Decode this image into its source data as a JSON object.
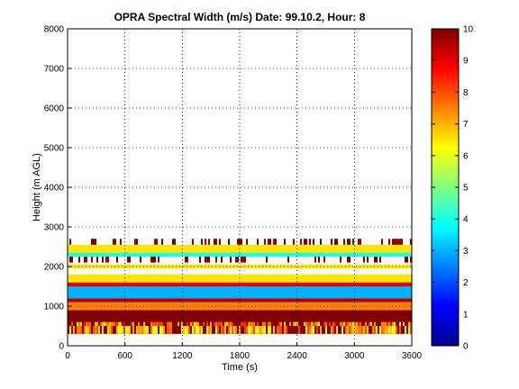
{
  "chart_data": {
    "type": "heatmap",
    "title": "OPRA Spectral Width (m/s)  Date: 99.10.2, Hour: 8",
    "xlabel": "Time (s)",
    "ylabel": "Height (m AGL)",
    "xlim": [
      0,
      3600
    ],
    "ylim": [
      0,
      8000
    ],
    "xticks": [
      0,
      600,
      1200,
      1800,
      2400,
      3000,
      3600
    ],
    "yticks": [
      0,
      1000,
      2000,
      3000,
      4000,
      5000,
      6000,
      7000,
      8000
    ],
    "grid": true,
    "colorbar": {
      "range": [
        0,
        10
      ],
      "ticks": [
        0,
        1,
        2,
        3,
        4,
        5,
        6,
        7,
        8,
        9,
        10
      ],
      "colormap": "jet"
    },
    "layers": [
      {
        "y_range": [
          300,
          900
        ],
        "value": 10,
        "x_range": [
          0,
          3600
        ]
      },
      {
        "y_range": [
          300,
          500
        ],
        "value": 7,
        "x_range": [
          0,
          3600
        ],
        "pattern": "speckle"
      },
      {
        "y_range": [
          500,
          600
        ],
        "value": 7.5,
        "x_range": [
          0,
          3600
        ],
        "pattern": "speckle"
      },
      {
        "y_range": [
          900,
          1100
        ],
        "value": 7.5,
        "x_range": [
          0,
          3600
        ]
      },
      {
        "y_range": [
          1100,
          1200
        ],
        "value": 9.5,
        "x_range": [
          0,
          3600
        ]
      },
      {
        "y_range": [
          1200,
          1500
        ],
        "value": 3,
        "x_range": [
          0,
          3600
        ]
      },
      {
        "y_range": [
          1500,
          1600
        ],
        "value": 9,
        "x_range": [
          0,
          3600
        ]
      },
      {
        "y_range": [
          1600,
          1800
        ],
        "value": 6.5,
        "x_range": [
          0,
          3600
        ]
      },
      {
        "y_range": [
          1950,
          2050
        ],
        "value": 6.5,
        "x_range": [
          0,
          3600
        ]
      },
      {
        "y_range": [
          2100,
          2250
        ],
        "value": 10,
        "x_range": [
          0,
          3600
        ],
        "pattern": "sparse"
      },
      {
        "y_range": [
          2250,
          2350
        ],
        "value": 4,
        "x_range": [
          0,
          3600
        ]
      },
      {
        "y_range": [
          2350,
          2550
        ],
        "value": 6.5,
        "x_range": [
          0,
          3600
        ]
      },
      {
        "y_range": [
          2550,
          2700
        ],
        "value": 10,
        "x_range": [
          0,
          3600
        ],
        "pattern": "sparse"
      }
    ]
  }
}
